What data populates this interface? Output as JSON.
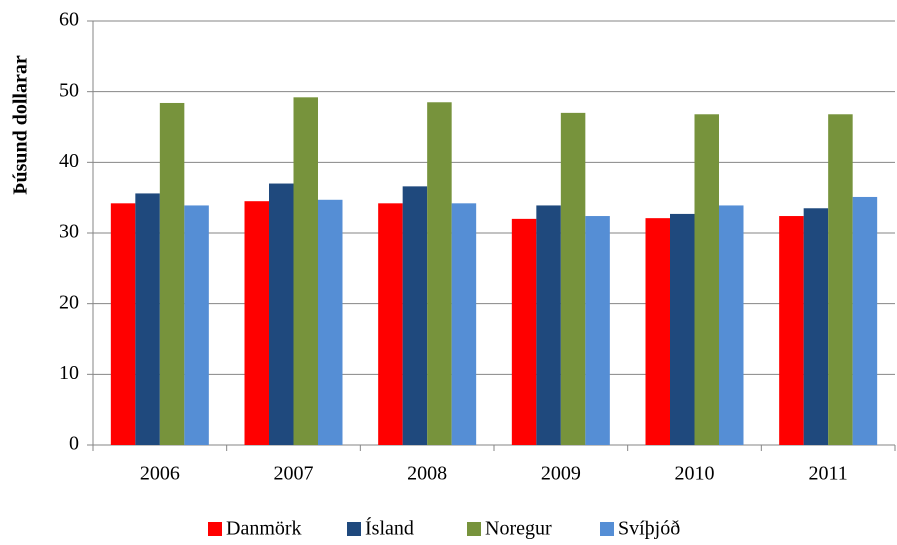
{
  "chart_data": {
    "type": "bar",
    "y_label": "Þúsund dollarar",
    "categories": [
      "2006",
      "2007",
      "2008",
      "2009",
      "2010",
      "2011"
    ],
    "series": [
      {
        "name": "Danmörk",
        "color": "#ff0000",
        "values": [
          34.2,
          34.5,
          34.2,
          32.0,
          32.1,
          32.4
        ]
      },
      {
        "name": "Ísland",
        "color": "#1f497d",
        "values": [
          35.6,
          37.0,
          36.6,
          33.9,
          32.7,
          33.5
        ]
      },
      {
        "name": "Noregur",
        "color": "#77933c",
        "values": [
          48.4,
          49.2,
          48.5,
          47.0,
          46.8,
          46.8
        ]
      },
      {
        "name": "Svíþjóð",
        "color": "#558ed5",
        "values": [
          33.9,
          34.7,
          34.2,
          32.4,
          33.9,
          35.1
        ]
      }
    ],
    "ylim": [
      0,
      60
    ],
    "yticks": [
      0,
      10,
      20,
      30,
      40,
      50,
      60
    ],
    "grid": true,
    "legend": "bottom"
  }
}
